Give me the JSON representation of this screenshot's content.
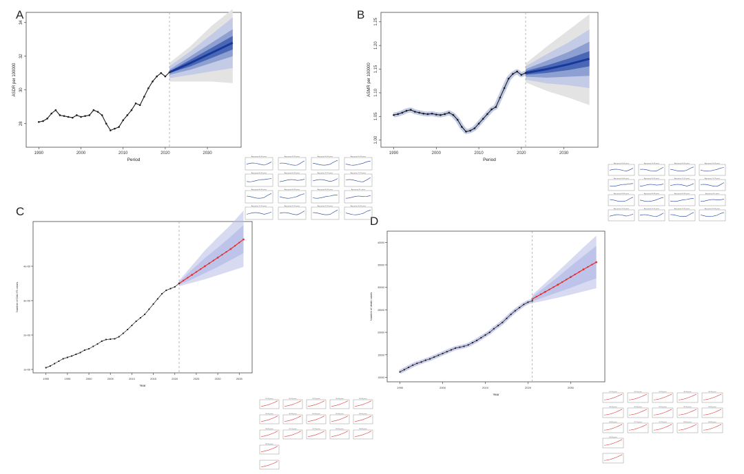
{
  "panel_letters": {
    "a": "A",
    "b": "B",
    "c": "C",
    "d": "D"
  },
  "colors": {
    "line": "#1a1a1a",
    "fan_dark": "#16389a",
    "fan_mid": "#4a67b5",
    "fan_light": "#8e9fd2",
    "fan_pale": "#c4cbe6",
    "fan_outer": "#e3e3e3",
    "fit_red": "#e0302f",
    "lavender": "#b6bce6",
    "dashed": "#9a9a9a"
  },
  "chart_data": [
    {
      "id": "A",
      "type": "line",
      "xlabel": "Period",
      "ylabel": "ASDR per 100000",
      "xlim": [
        1987,
        2038
      ],
      "ylim": [
        26.6,
        34.6
      ],
      "xticks": [
        1990,
        2000,
        2010,
        2020,
        2030
      ],
      "yticks": [
        28,
        30,
        32,
        34
      ],
      "forecast_start": 2021,
      "observed": {
        "x": [
          1990,
          1991,
          1992,
          1993,
          1994,
          1995,
          1996,
          1997,
          1998,
          1999,
          2000,
          2001,
          2002,
          2003,
          2004,
          2005,
          2006,
          2007,
          2008,
          2009,
          2010,
          2011,
          2012,
          2013,
          2014,
          2015,
          2016,
          2017,
          2018,
          2019,
          2020,
          2021
        ],
        "y": [
          28.1,
          28.15,
          28.3,
          28.6,
          28.8,
          28.5,
          28.45,
          28.4,
          28.35,
          28.5,
          28.4,
          28.45,
          28.5,
          28.8,
          28.7,
          28.5,
          28.0,
          27.6,
          27.7,
          27.8,
          28.2,
          28.5,
          28.8,
          29.2,
          29.1,
          29.6,
          30.1,
          30.5,
          30.8,
          31.0,
          30.8,
          31.05
        ]
      },
      "forecast": {
        "x": [
          2021,
          2026,
          2031,
          2036
        ],
        "mean": [
          31.05,
          31.6,
          32.2,
          32.8
        ],
        "ci_inner": [
          [
            31.0,
            31.1
          ],
          [
            31.4,
            31.8
          ],
          [
            31.9,
            32.5
          ],
          [
            32.4,
            33.2
          ]
        ],
        "ci_mid": [
          [
            30.9,
            31.2
          ],
          [
            31.2,
            32.0
          ],
          [
            31.6,
            32.8
          ],
          [
            32.0,
            33.6
          ]
        ],
        "ci_outer": [
          [
            30.7,
            31.4
          ],
          [
            30.9,
            32.3
          ],
          [
            31.1,
            33.3
          ],
          [
            31.3,
            34.3
          ]
        ],
        "ci_widest": [
          [
            30.5,
            31.6
          ],
          [
            30.5,
            32.6
          ],
          [
            30.5,
            33.8
          ],
          [
            30.4,
            34.8
          ]
        ]
      },
      "inset_titles": [
        "Age group 40-44 years",
        "Age group 45-49 years",
        "Age group 50-54 years",
        "Age group 55-59 years",
        "Age group 60-64 years",
        "Age group 65-69 years",
        "Age group 70-74 years",
        "Age group 75-79 years",
        "Age group 80-84 years",
        "Age group 85-89 years",
        "Age group 90-94 years",
        "Age group 95+ years",
        "Age group 15-19 years",
        "Age group 20-24 years",
        "Age group 25-29 years",
        "Age group 30-34 years"
      ]
    },
    {
      "id": "B",
      "type": "line",
      "xlabel": "Period",
      "ylabel": "ASMR per 100000",
      "xlim": [
        1987,
        2038
      ],
      "ylim": [
        0.985,
        1.27
      ],
      "xticks": [
        1990,
        2000,
        2010,
        2020,
        2030
      ],
      "yticks": [
        1.0,
        1.05,
        1.1,
        1.15,
        1.2,
        1.25
      ],
      "forecast_start": 2021,
      "observed": {
        "x": [
          1990,
          1991,
          1992,
          1993,
          1994,
          1995,
          1996,
          1997,
          1998,
          1999,
          2000,
          2001,
          2002,
          2003,
          2004,
          2005,
          2006,
          2007,
          2008,
          2009,
          2010,
          2011,
          2012,
          2013,
          2014,
          2015,
          2016,
          2017,
          2018,
          2019,
          2020,
          2021
        ],
        "y": [
          1.053,
          1.055,
          1.058,
          1.062,
          1.064,
          1.06,
          1.058,
          1.056,
          1.055,
          1.056,
          1.054,
          1.053,
          1.055,
          1.058,
          1.053,
          1.043,
          1.028,
          1.018,
          1.02,
          1.025,
          1.035,
          1.045,
          1.055,
          1.065,
          1.07,
          1.09,
          1.11,
          1.13,
          1.14,
          1.145,
          1.138,
          1.142
        ]
      },
      "forecast": {
        "x": [
          2021,
          2026,
          2031,
          2036
        ],
        "mean": [
          1.142,
          1.15,
          1.16,
          1.172
        ],
        "ci_inner": [
          [
            1.138,
            1.146
          ],
          [
            1.142,
            1.158
          ],
          [
            1.148,
            1.172
          ],
          [
            1.156,
            1.188
          ]
        ],
        "ci_mid": [
          [
            1.134,
            1.15
          ],
          [
            1.132,
            1.168
          ],
          [
            1.134,
            1.186
          ],
          [
            1.136,
            1.208
          ]
        ],
        "ci_outer": [
          [
            1.128,
            1.156
          ],
          [
            1.12,
            1.182
          ],
          [
            1.116,
            1.206
          ],
          [
            1.11,
            1.234
          ]
        ],
        "ci_widest": [
          [
            1.122,
            1.162
          ],
          [
            1.104,
            1.198
          ],
          [
            1.09,
            1.232
          ],
          [
            1.074,
            1.266
          ]
        ]
      },
      "inset_titles": [
        "Age group 40-44 years",
        "Age group 45-49 years",
        "Age group 50-54 years",
        "Age group 55-59 years",
        "Age group 60-64 years",
        "Age group 65-69 years",
        "Age group 70-74 years",
        "Age group 75-79 years",
        "Age group 80-84 years",
        "Age group 85-89 years",
        "Age group 90-94 years",
        "Age group 95+ years",
        "Age group 15-19 years",
        "Age group 20-24 years",
        "Age group 25-29 years",
        "Age group 30-34 years"
      ]
    },
    {
      "id": "C",
      "type": "line",
      "xlabel": "Year",
      "ylabel": "Number of DALYS cases",
      "xlim": [
        1987,
        2038
      ],
      "ylim": [
        0.9,
        5.3
      ],
      "xticks": [
        1990,
        1995,
        2000,
        2005,
        2010,
        2015,
        2020,
        2025,
        2030,
        2035
      ],
      "yticks": [
        1,
        2,
        3,
        4
      ],
      "ytick_labels": [
        "1e+06",
        "2e+06",
        "3e+06",
        "4e+06"
      ],
      "forecast_start": 2021,
      "observed": {
        "x": [
          1990,
          1991,
          1992,
          1993,
          1994,
          1995,
          1996,
          1997,
          1998,
          1999,
          2000,
          2001,
          2002,
          2003,
          2004,
          2005,
          2006,
          2007,
          2008,
          2009,
          2010,
          2011,
          2012,
          2013,
          2014,
          2015,
          2016,
          2017,
          2018,
          2019,
          2020,
          2021
        ],
        "y": [
          1.05,
          1.1,
          1.17,
          1.24,
          1.31,
          1.35,
          1.39,
          1.44,
          1.49,
          1.56,
          1.6,
          1.67,
          1.74,
          1.82,
          1.87,
          1.88,
          1.89,
          1.95,
          2.05,
          2.16,
          2.28,
          2.4,
          2.5,
          2.6,
          2.75,
          2.9,
          3.05,
          3.2,
          3.3,
          3.35,
          3.4,
          3.5
        ]
      },
      "forecast": {
        "x": [
          2021,
          2024,
          2027,
          2030,
          2033,
          2036
        ],
        "mean": [
          3.5,
          3.75,
          4.0,
          4.25,
          4.5,
          4.78
        ],
        "ci_inner": [
          [
            3.46,
            3.54
          ],
          [
            3.62,
            3.9
          ],
          [
            3.8,
            4.24
          ],
          [
            3.98,
            4.54
          ],
          [
            4.18,
            4.86
          ],
          [
            4.38,
            5.2
          ]
        ],
        "ci_outer": [
          [
            3.42,
            3.58
          ],
          [
            3.52,
            4.02
          ],
          [
            3.62,
            4.46
          ],
          [
            3.74,
            4.84
          ],
          [
            3.86,
            5.2
          ],
          [
            3.98,
            5.62
          ]
        ]
      },
      "inset_titles": [
        "15-19 years",
        "20-24 years",
        "25-29 years",
        "30-34 years",
        "35-39 years",
        "40-44 years",
        "45-49 years",
        "50-54 years",
        "55-59 years",
        "60-64 years",
        "65-69 years",
        "70-74 years",
        "75-79 years",
        "80-84 years",
        "85-89 years",
        "90-94 years"
      ]
    },
    {
      "id": "D",
      "type": "line",
      "xlabel": "Year",
      "ylabel": "Number of death cases",
      "xlim": [
        1987,
        2038
      ],
      "ylim": [
        9000,
        42500
      ],
      "xticks": [
        1990,
        2000,
        2010,
        2020,
        2030
      ],
      "yticks": [
        10000,
        15000,
        20000,
        25000,
        30000,
        35000,
        40000
      ],
      "forecast_start": 2021,
      "observed": {
        "x": [
          1990,
          1991,
          1992,
          1993,
          1994,
          1995,
          1996,
          1997,
          1998,
          1999,
          2000,
          2001,
          2002,
          2003,
          2004,
          2005,
          2006,
          2007,
          2008,
          2009,
          2010,
          2011,
          2012,
          2013,
          2014,
          2015,
          2016,
          2017,
          2018,
          2019,
          2020,
          2021
        ],
        "y": [
          11200,
          11700,
          12200,
          12700,
          13100,
          13400,
          13800,
          14100,
          14500,
          14900,
          15300,
          15700,
          16100,
          16500,
          16700,
          16900,
          17200,
          17700,
          18200,
          18800,
          19400,
          20000,
          20800,
          21500,
          22200,
          23100,
          24000,
          24800,
          25500,
          26200,
          26700,
          27000
        ]
      },
      "forecast": {
        "x": [
          2021,
          2024,
          2027,
          2030,
          2033,
          2036
        ],
        "mean": [
          27400,
          29000,
          30600,
          32300,
          34000,
          35600
        ],
        "ci_inner": [
          [
            26900,
            27900
          ],
          [
            27900,
            30100
          ],
          [
            28900,
            32300
          ],
          [
            29900,
            34700
          ],
          [
            31000,
            37000
          ],
          [
            32000,
            39200
          ]
        ],
        "ci_outer": [
          [
            26500,
            28300
          ],
          [
            27100,
            30900
          ],
          [
            27700,
            33500
          ],
          [
            28400,
            36200
          ],
          [
            29100,
            38900
          ],
          [
            29800,
            41500
          ]
        ]
      },
      "inset_titles": [
        "15-19 years",
        "20-24 years",
        "25-29 years",
        "30-34 years",
        "35-39 years",
        "40-44 years",
        "45-49 years",
        "50-54 years",
        "55-59 years",
        "60-64 years",
        "65-69 years",
        "70-74 years",
        "75-79 years",
        "80-84 years",
        "85-89 years",
        "90-94 years"
      ]
    }
  ]
}
